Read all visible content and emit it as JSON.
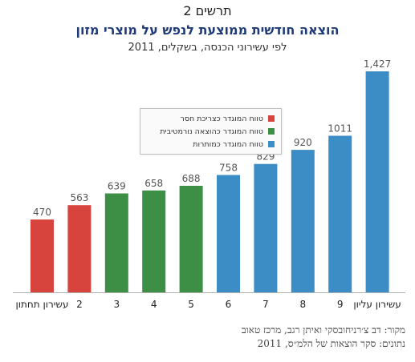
{
  "figure_label": "תרשים 2",
  "chart_data": {
    "type": "bar",
    "title": "הוצאה חודשית ממוצעת לנפש על מוצרי מזון",
    "subtitle": "לפי עשירוני הכנסה, בשקלים, 2011",
    "categories": [
      "עשירון תחתון",
      "2",
      "3",
      "4",
      "5",
      "6",
      "7",
      "8",
      "9",
      "עשירון עליון"
    ],
    "values": [
      470,
      563,
      639,
      658,
      688,
      758,
      829,
      920,
      1011,
      1427
    ],
    "value_labels": [
      "470",
      "563",
      "639",
      "658",
      "688",
      "758",
      "829",
      "920",
      "1011",
      "1,427"
    ],
    "groups": [
      0,
      0,
      1,
      1,
      1,
      2,
      2,
      2,
      2,
      2
    ],
    "ylim": [
      0,
      1500
    ],
    "grid": false,
    "legend_position": "top-left",
    "legend": [
      {
        "label": "טווח המוגדר כצריכת חסר",
        "color": "#d7443e"
      },
      {
        "label": "טווח המוגדר כהוצאה נורמטיבית",
        "color": "#3c8f45"
      },
      {
        "label": "טווח המוגדר כמותרות",
        "color": "#3c8dc5"
      }
    ],
    "value_label_color": "#555555",
    "axis_color": "#b0b0b0"
  },
  "source": {
    "line1": "מקור: דב צ׳רניחובסקי ואיתן רגב, מרכז טאוב",
    "line2": "נתונים: סקר הוצאות של הלמ״ס, 2011"
  }
}
